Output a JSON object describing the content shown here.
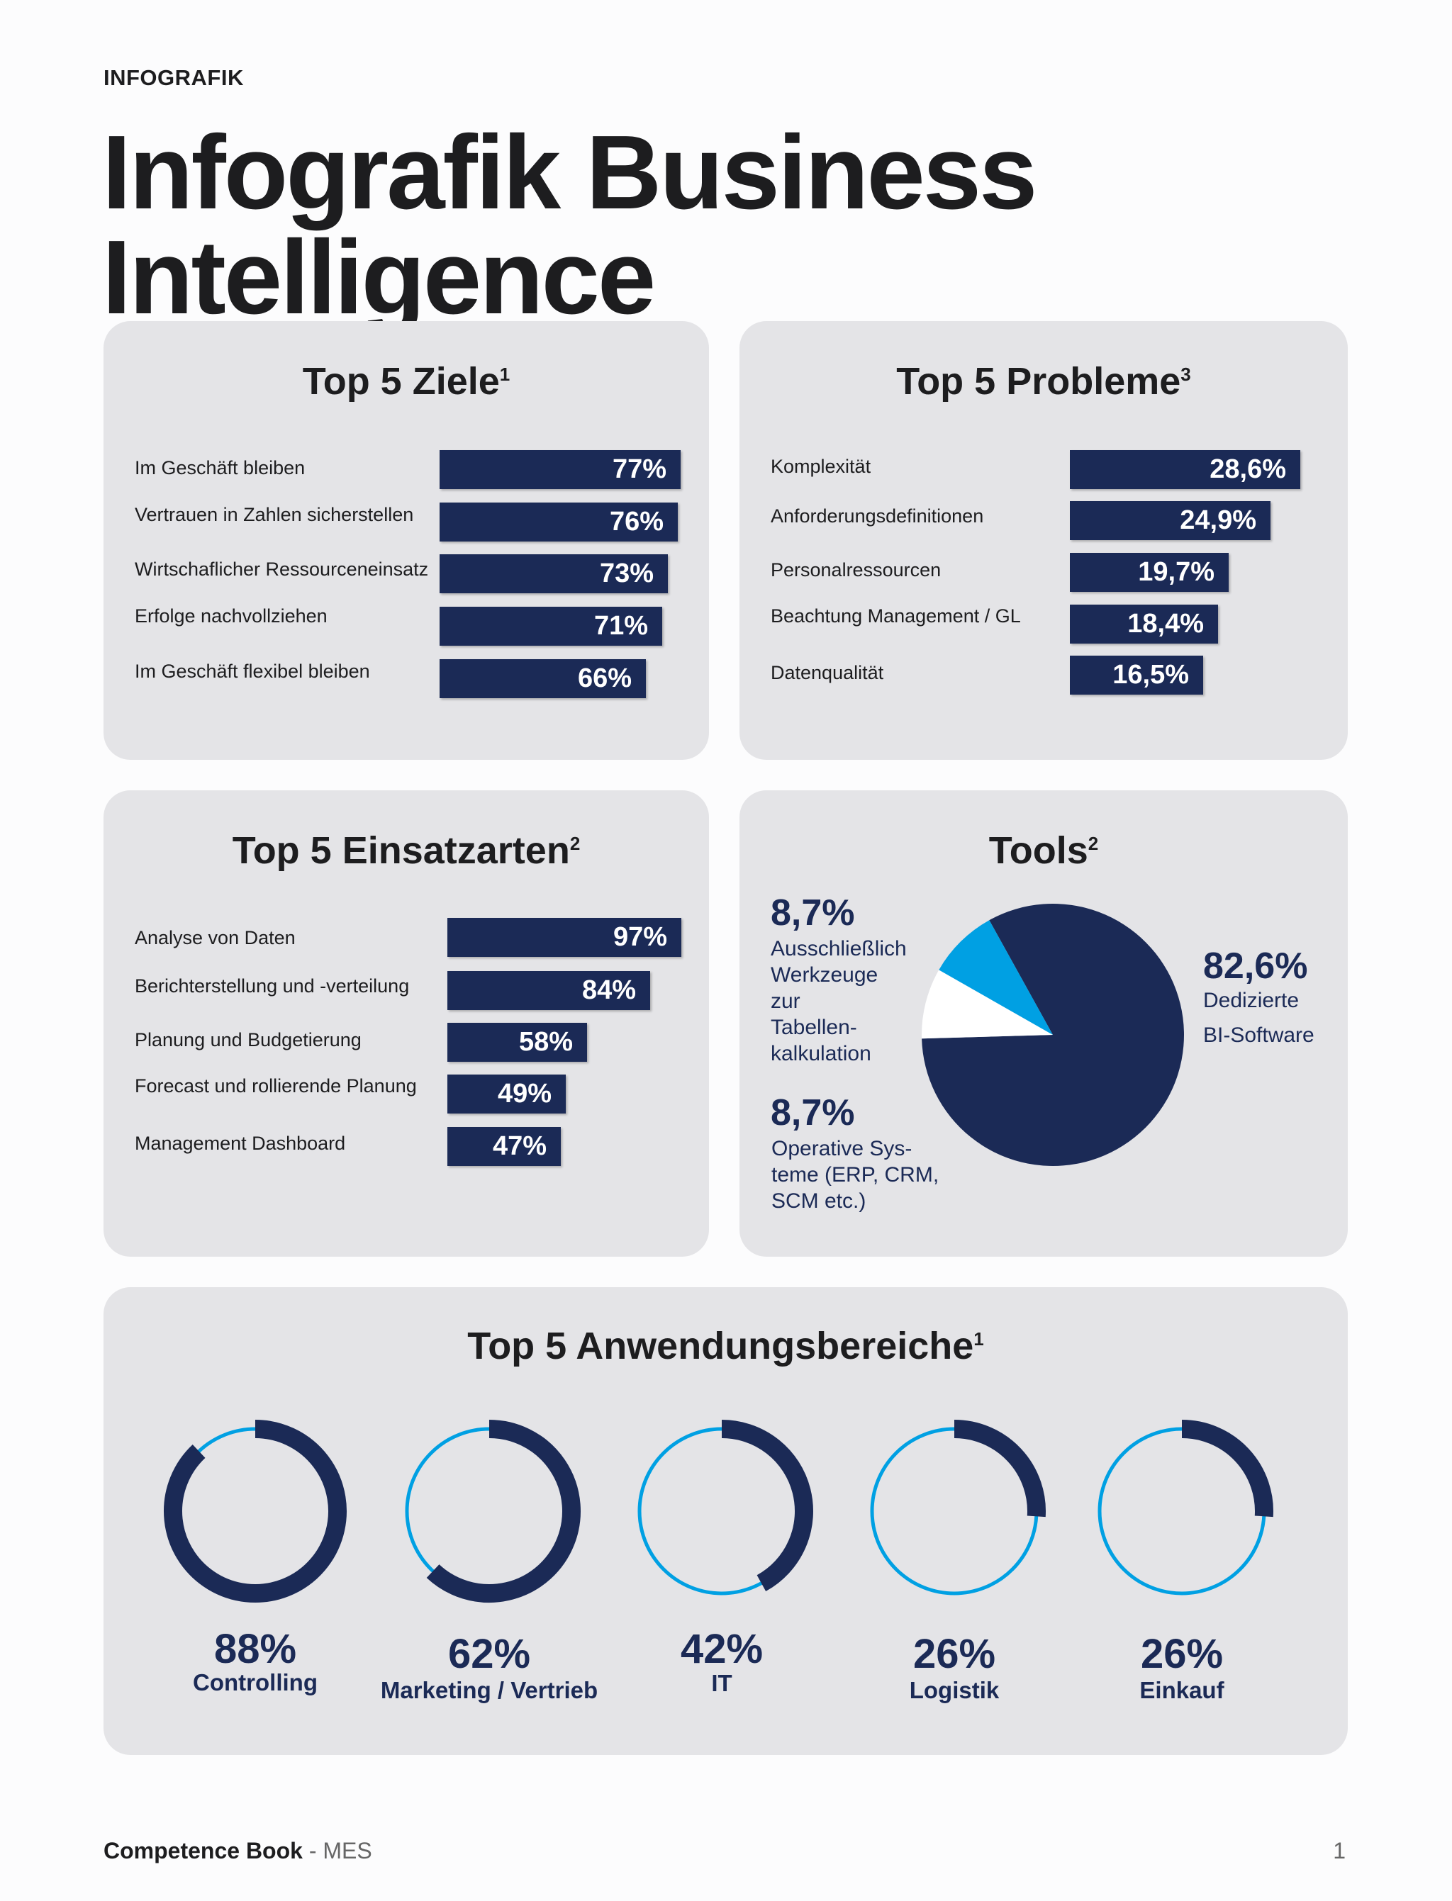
{
  "header": {
    "kicker": "INFOGRAFIK",
    "title": "Infografik Business Intelligence"
  },
  "colors": {
    "navy": "#1b2a56",
    "cyan": "#00a0e3",
    "white": "#ffffff",
    "panel": "#e4e4e7"
  },
  "ziele": {
    "title": "Top 5 Ziele",
    "sup": "1",
    "items": [
      {
        "label": "Im Geschäft bleiben",
        "value": 77,
        "display": "77%"
      },
      {
        "label": "Vertrauen in Zahlen sicherstellen",
        "value": 76,
        "display": "76%"
      },
      {
        "label": "Wirtschaflicher Ressourceneinsatz",
        "value": 73,
        "display": "73%"
      },
      {
        "label": "Erfolge nachvollziehen",
        "value": 71,
        "display": "71%"
      },
      {
        "label": "Im Geschäft flexibel bleiben",
        "value": 66,
        "display": "66%"
      }
    ]
  },
  "probleme": {
    "title": "Top 5 Probleme",
    "sup": "3",
    "items": [
      {
        "label": "Komplexität",
        "value": 28.6,
        "display": "28,6%"
      },
      {
        "label": "Anforderungsdefinitionen",
        "value": 24.9,
        "display": "24,9%"
      },
      {
        "label": "Personalressourcen",
        "value": 19.7,
        "display": "19,7%"
      },
      {
        "label": "Beachtung Management / GL",
        "value": 18.4,
        "display": "18,4%"
      },
      {
        "label": "Datenqualität",
        "value": 16.5,
        "display": "16,5%"
      }
    ]
  },
  "einsatz": {
    "title": "Top 5 Einsatzarten",
    "sup": "2",
    "items": [
      {
        "label": "Analyse von Daten",
        "value": 97,
        "display": "97%"
      },
      {
        "label": "Berichterstellung und -verteilung",
        "value": 84,
        "display": "84%"
      },
      {
        "label": "Planung und Budgetierung",
        "value": 58,
        "display": "58%"
      },
      {
        "label": "Forecast und rollierende Planung",
        "value": 49,
        "display": "49%"
      },
      {
        "label": "Management Dashboard",
        "value": 47,
        "display": "47%"
      }
    ]
  },
  "tools": {
    "title": "Tools",
    "sup": "2",
    "slices": [
      {
        "value": 82.6,
        "display": "82,6%",
        "desc1": "Dedizierte",
        "desc2": "BI-Software",
        "color": "#1b2a56"
      },
      {
        "value": 8.7,
        "display": "8,7%",
        "desc": "Operative Sys-|teme (ERP, CRM,|SCM etc.)",
        "color": "#ffffff"
      },
      {
        "value": 8.7,
        "display": "8,7%",
        "desc": "Ausschließlich|Werkzeuge|zur|Tabellen-|kalkulation",
        "color": "#00a0e3"
      }
    ]
  },
  "anwendung": {
    "title": "Top 5 Anwendungsbereiche",
    "sup": "1",
    "items": [
      {
        "label": "Controlling",
        "value": 88,
        "display": "88%"
      },
      {
        "label": "Marketing / Vertrieb",
        "value": 62,
        "display": "62%"
      },
      {
        "label": "IT",
        "value": 42,
        "display": "42%"
      },
      {
        "label": "Logistik",
        "value": 26,
        "display": "26%"
      },
      {
        "label": "Einkauf",
        "value": 26,
        "display": "26%"
      }
    ]
  },
  "chart_data": [
    {
      "type": "bar",
      "title": "Top 5 Ziele",
      "categories": [
        "Im Geschäft bleiben",
        "Vertrauen in Zahlen sicherstellen",
        "Wirtschaflicher Ressourceneinsatz",
        "Erfolge nachvollziehen",
        "Im Geschäft flexibel bleiben"
      ],
      "values": [
        77,
        76,
        73,
        71,
        66
      ]
    },
    {
      "type": "bar",
      "title": "Top 5 Probleme",
      "categories": [
        "Komplexität",
        "Anforderungsdefinitionen",
        "Personalressourcen",
        "Beachtung Management / GL",
        "Datenqualität"
      ],
      "values": [
        28.6,
        24.9,
        19.7,
        18.4,
        16.5
      ]
    },
    {
      "type": "bar",
      "title": "Top 5 Einsatzarten",
      "categories": [
        "Analyse von Daten",
        "Berichterstellung und -verteilung",
        "Planung und Budgetierung",
        "Forecast und rollierende Planung",
        "Management Dashboard"
      ],
      "values": [
        97,
        84,
        58,
        49,
        47
      ]
    },
    {
      "type": "pie",
      "title": "Tools",
      "categories": [
        "Dedizierte BI-Software",
        "Operative Systeme (ERP, CRM, SCM etc.)",
        "Ausschließlich Werkzeuge zur Tabellenkalkulation"
      ],
      "values": [
        82.6,
        8.7,
        8.7
      ]
    },
    {
      "type": "pie",
      "title": "Top 5 Anwendungsbereiche",
      "categories": [
        "Controlling",
        "Marketing / Vertrieb",
        "IT",
        "Logistik",
        "Einkauf"
      ],
      "values": [
        88,
        62,
        42,
        26,
        26
      ]
    }
  ],
  "footer": {
    "brand": "Competence Book",
    "sub": " - MES",
    "page": "1"
  }
}
